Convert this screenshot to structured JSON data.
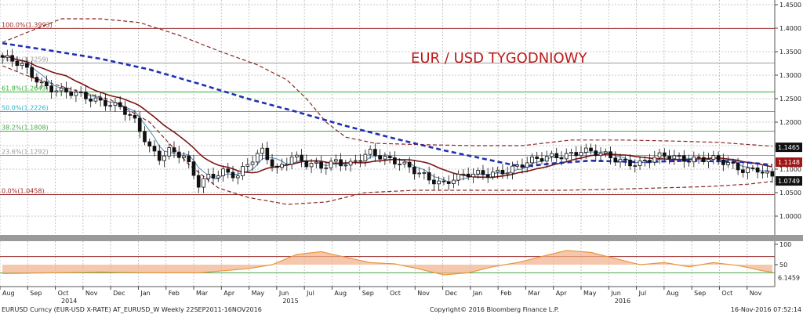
{
  "colors": {
    "background": "#ffffff",
    "grid": "#b8b8b8",
    "candle": "#111111",
    "sma_short": "#4f86b5",
    "sma_long": "#7b1616",
    "sma_dashed": "#1f2fb0",
    "bands": "#8a2a2a",
    "title": "#c01818",
    "fib_100": "#9b2a2a",
    "fib_76": "#9a9a9a",
    "fib_61": "#2fae2f",
    "fib_50": "#27b0c8",
    "fib_38": "#47a847",
    "fib_23": "#9a9a9a",
    "fib_0": "#9b2a2a",
    "rsi_line": "#e8963c",
    "rsi_fill_up": "#f1b08a",
    "rsi_fill_gray": "#cfcfcf",
    "rsi_fill_red": "#f3a4a4",
    "tag_dark": "#111111",
    "tag_red": "#a01515",
    "tag_blue": "#2a6fb8"
  },
  "chart_data": {
    "type": "candlestick",
    "title": "EUR / USD TYGODNIOWY",
    "ylim": [
      0.96,
      1.46
    ],
    "y_ticks": [
      1.0,
      1.05,
      1.1,
      1.15,
      1.2,
      1.25,
      1.3,
      1.35,
      1.4,
      1.45
    ],
    "y_tick_labels": [
      "1.0000",
      "1.0500",
      "1.1000",
      "1.1500",
      "1.2000",
      "1.2500",
      "1.3000",
      "1.3500",
      "1.4000",
      "1.4500"
    ],
    "x_months": [
      "Aug",
      "Sep",
      "Oct",
      "Nov",
      "Dec",
      "Jan",
      "Feb",
      "Mar",
      "Apr",
      "May",
      "Jun",
      "Jul",
      "Aug",
      "Sep",
      "Oct",
      "Nov",
      "Dec",
      "Jan",
      "Feb",
      "Mar",
      "Apr",
      "May",
      "Jun",
      "Jul",
      "Aug",
      "Sep",
      "Oct",
      "Nov"
    ],
    "x_years": [
      {
        "label": "2014",
        "month_index": 2
      },
      {
        "label": "2015",
        "month_index": 10
      },
      {
        "label": "2016",
        "month_index": 22
      }
    ],
    "fib_levels": [
      {
        "label": "100.0%(1.3993)",
        "value": 1.3993,
        "color_key": "fib_100"
      },
      {
        "label": "76.4%(1.3259)",
        "value": 1.3259,
        "color_key": "fib_76"
      },
      {
        "label": "61.8%(1.2643)",
        "value": 1.2643,
        "color_key": "fib_61"
      },
      {
        "label": "50.0%(1.2226)",
        "value": 1.2226,
        "color_key": "fib_50"
      },
      {
        "label": "38.2%(1.1808)",
        "value": 1.1808,
        "color_key": "fib_38"
      },
      {
        "label": "23.6%(1.1292)",
        "value": 1.1292,
        "color_key": "fib_23"
      },
      {
        "label": "0.0%(1.0458)",
        "value": 1.0458,
        "color_key": "fib_0"
      }
    ],
    "price_tags": [
      {
        "label": "1.1465",
        "value": 1.1465,
        "color_key": "tag_dark"
      },
      {
        "label": "1.1148",
        "value": 1.1148,
        "color_key": "tag_red"
      },
      {
        "label": "1.0749",
        "value": 1.0749,
        "color_key": "tag_dark"
      }
    ],
    "close_keypoints": [
      [
        0,
        1.338
      ],
      [
        4,
        1.318
      ],
      [
        8,
        1.283
      ],
      [
        12,
        1.265
      ],
      [
        17,
        1.252
      ],
      [
        21,
        1.245
      ],
      [
        24,
        1.232
      ],
      [
        27,
        1.198
      ],
      [
        30,
        1.145
      ],
      [
        32,
        1.128
      ],
      [
        34,
        1.142
      ],
      [
        37,
        1.125
      ],
      [
        40,
        1.065
      ],
      [
        42,
        1.085
      ],
      [
        45,
        1.098
      ],
      [
        48,
        1.085
      ],
      [
        51,
        1.118
      ],
      [
        53,
        1.138
      ],
      [
        56,
        1.102
      ],
      [
        59,
        1.128
      ],
      [
        62,
        1.108
      ],
      [
        65,
        1.105
      ],
      [
        68,
        1.12
      ],
      [
        71,
        1.11
      ],
      [
        75,
        1.132
      ],
      [
        78,
        1.125
      ],
      [
        81,
        1.118
      ],
      [
        84,
        1.095
      ],
      [
        87,
        1.075
      ],
      [
        90,
        1.07
      ],
      [
        92,
        1.085
      ],
      [
        95,
        1.09
      ],
      [
        98,
        1.085
      ],
      [
        101,
        1.092
      ],
      [
        104,
        1.105
      ],
      [
        107,
        1.115
      ],
      [
        110,
        1.12
      ],
      [
        113,
        1.128
      ],
      [
        116,
        1.135
      ],
      [
        118,
        1.14
      ],
      [
        121,
        1.132
      ],
      [
        124,
        1.125
      ],
      [
        127,
        1.118
      ],
      [
        130,
        1.112
      ],
      [
        133,
        1.122
      ],
      [
        136,
        1.128
      ],
      [
        139,
        1.125
      ],
      [
        142,
        1.122
      ],
      [
        145,
        1.118
      ],
      [
        148,
        1.112
      ],
      [
        151,
        1.102
      ],
      [
        154,
        1.1
      ],
      [
        156,
        1.085
      ],
      [
        158,
        1.075
      ]
    ],
    "sma_dashed_keypoints": [
      [
        0,
        1.368
      ],
      [
        10,
        1.352
      ],
      [
        20,
        1.335
      ],
      [
        30,
        1.312
      ],
      [
        40,
        1.282
      ],
      [
        50,
        1.25
      ],
      [
        60,
        1.222
      ],
      [
        70,
        1.192
      ],
      [
        80,
        1.165
      ],
      [
        90,
        1.14
      ],
      [
        100,
        1.118
      ],
      [
        106,
        1.105
      ],
      [
        112,
        1.112
      ],
      [
        120,
        1.118
      ],
      [
        130,
        1.115
      ],
      [
        140,
        1.118
      ],
      [
        150,
        1.116
      ],
      [
        158,
        1.108
      ]
    ],
    "upper_band_keypoints": [
      [
        0,
        1.37
      ],
      [
        8,
        1.368
      ],
      [
        14,
        1.365
      ],
      [
        22,
        1.352
      ],
      [
        30,
        1.33
      ],
      [
        38,
        1.3
      ],
      [
        44,
        1.278
      ],
      [
        50,
        1.245
      ],
      [
        56,
        1.205
      ],
      [
        62,
        1.178
      ],
      [
        68,
        1.168
      ],
      [
        76,
        1.162
      ],
      [
        86,
        1.16
      ],
      [
        96,
        1.162
      ],
      [
        106,
        1.158
      ],
      [
        116,
        1.163
      ],
      [
        126,
        1.16
      ],
      [
        136,
        1.158
      ],
      [
        146,
        1.155
      ],
      [
        158,
        1.15
      ]
    ],
    "lower_band_keypoints": [
      [
        0,
        1.32
      ],
      [
        6,
        1.295
      ],
      [
        14,
        1.27
      ],
      [
        22,
        1.248
      ],
      [
        30,
        1.2
      ],
      [
        38,
        1.11
      ],
      [
        44,
        1.06
      ],
      [
        50,
        1.04
      ],
      [
        58,
        1.025
      ],
      [
        66,
        1.03
      ],
      [
        74,
        1.05
      ],
      [
        84,
        1.055
      ],
      [
        94,
        1.055
      ],
      [
        104,
        1.055
      ],
      [
        114,
        1.055
      ],
      [
        124,
        1.057
      ],
      [
        134,
        1.06
      ],
      [
        144,
        1.063
      ],
      [
        152,
        1.068
      ],
      [
        158,
        1.075
      ]
    ],
    "fib_upper_keypoints": [
      [
        0,
        1.37
      ],
      [
        6,
        1.395
      ],
      [
        12,
        1.42
      ],
      [
        20,
        1.42
      ],
      [
        28,
        1.412
      ],
      [
        36,
        1.385
      ],
      [
        44,
        1.352
      ],
      [
        52,
        1.322
      ],
      [
        58,
        1.29
      ],
      [
        62,
        1.25
      ],
      [
        66,
        1.2
      ],
      [
        70,
        1.168
      ],
      [
        76,
        1.155
      ],
      [
        86,
        1.152
      ],
      [
        96,
        1.15
      ],
      [
        106,
        1.15
      ],
      [
        116,
        1.162
      ],
      [
        126,
        1.162
      ],
      [
        136,
        1.16
      ],
      [
        146,
        1.157
      ],
      [
        158,
        1.148
      ]
    ],
    "rsi_keypoints": [
      [
        0,
        28
      ],
      [
        10,
        30
      ],
      [
        20,
        32
      ],
      [
        30,
        30
      ],
      [
        40,
        30
      ],
      [
        50,
        40
      ],
      [
        55,
        50
      ],
      [
        60,
        75
      ],
      [
        65,
        82
      ],
      [
        70,
        68
      ],
      [
        75,
        55
      ],
      [
        80,
        52
      ],
      [
        84,
        42
      ],
      [
        90,
        25
      ],
      [
        95,
        30
      ],
      [
        100,
        45
      ],
      [
        105,
        55
      ],
      [
        110,
        70
      ],
      [
        115,
        85
      ],
      [
        120,
        80
      ],
      [
        125,
        65
      ],
      [
        130,
        50
      ],
      [
        135,
        55
      ],
      [
        140,
        45
      ],
      [
        145,
        55
      ],
      [
        150,
        48
      ],
      [
        155,
        35
      ],
      [
        158,
        30
      ]
    ],
    "rsi_ylim": [
      0,
      100
    ],
    "rsi_ticks": [
      50,
      100
    ],
    "rsi_tick_labels": [
      "50",
      "100"
    ],
    "rsi_hlines": [
      {
        "value": 70,
        "color_key": "fib_100"
      },
      {
        "value": 30,
        "color_key": "fib_38"
      }
    ],
    "rsi_value_tag": "6.1459",
    "bars": 158
  },
  "footer": {
    "left": "EURUSD Curncy (EUR-USD X-RATE) AT_EURUSD_W  Weekly 22SEP2011-16NOV2016",
    "center": "Copyright© 2016 Bloomberg Finance L.P.",
    "right": "16-Nov-2016 07:52:14"
  }
}
